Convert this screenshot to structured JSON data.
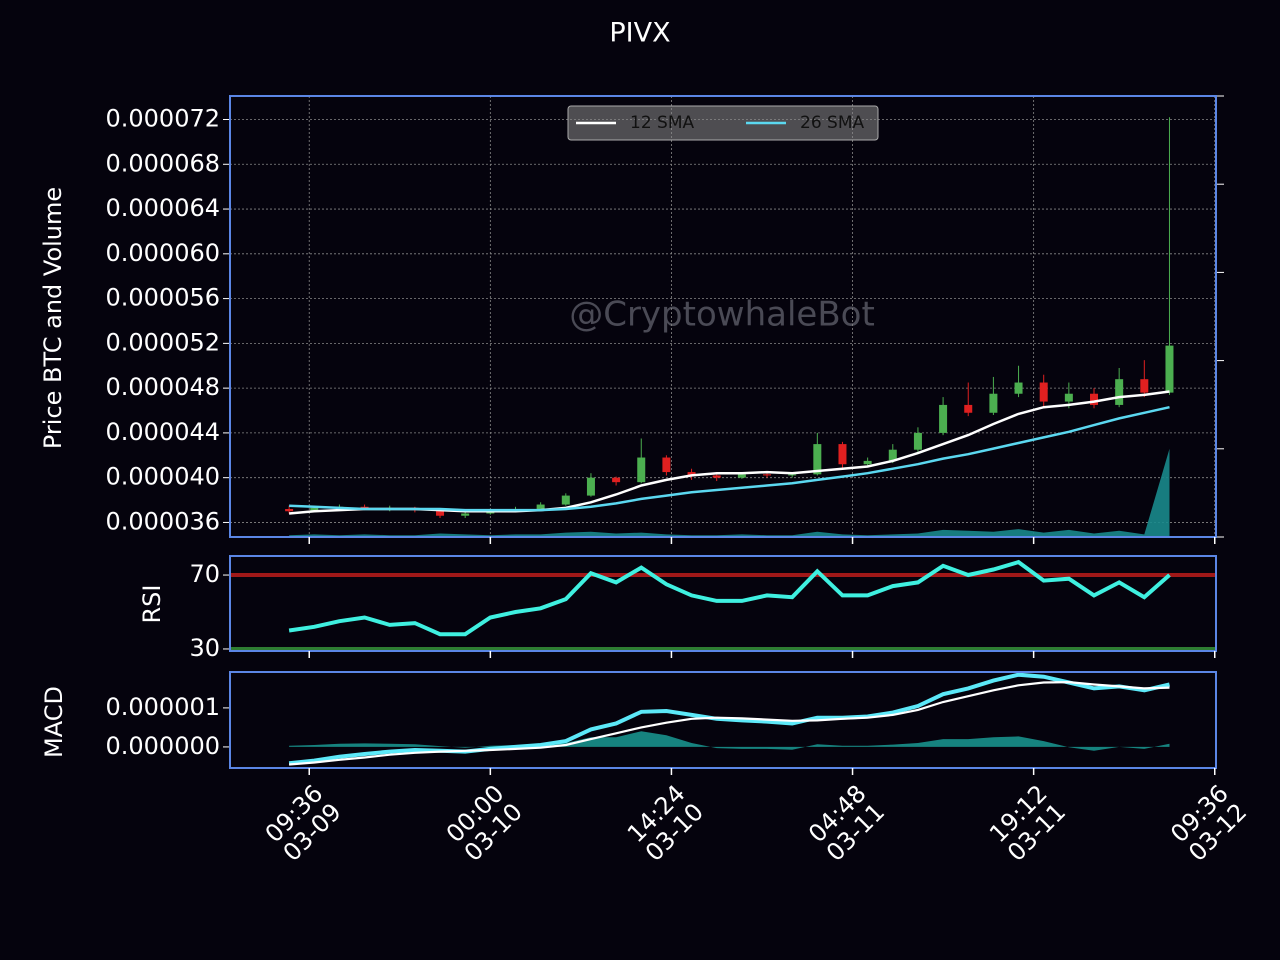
{
  "chart_data": [
    {
      "type": "candlestick",
      "title": "PIVX",
      "ylabel": "Price BTC and Volume",
      "watermark": "@CryptowhaleBot",
      "x": [
        8,
        10,
        12,
        14,
        16,
        18,
        20,
        22,
        24,
        26,
        28,
        30,
        32,
        34,
        36,
        38,
        40,
        42,
        44,
        46,
        48,
        50,
        52,
        54,
        56,
        58,
        60,
        62,
        64,
        66,
        68,
        70,
        72,
        74,
        76,
        78
      ],
      "xlim": [
        3.3,
        81.7
      ],
      "xticks": [
        {
          "value": 9.6,
          "label": "09:36\n03-09"
        },
        {
          "value": 24,
          "label": "00:00\n03-10"
        },
        {
          "value": 38.4,
          "label": "14:24\n03-10"
        },
        {
          "value": 52.8,
          "label": "04:48\n03-11"
        },
        {
          "value": 67.2,
          "label": "19:12\n03-11"
        },
        {
          "value": 81.6,
          "label": "09:36\n03-12"
        }
      ],
      "ylim": [
        3.47e-05,
        7.41e-05
      ],
      "yticks": [
        {
          "value": 3.6e-05,
          "label": "0.000036"
        },
        {
          "value": 4e-05,
          "label": "0.000040"
        },
        {
          "value": 4.4e-05,
          "label": "0.000044"
        },
        {
          "value": 4.8e-05,
          "label": "0.000048"
        },
        {
          "value": 5.2e-05,
          "label": "0.000052"
        },
        {
          "value": 5.6e-05,
          "label": "0.000056"
        },
        {
          "value": 6e-05,
          "label": "0.000060"
        },
        {
          "value": 6.4e-05,
          "label": "0.000064"
        },
        {
          "value": 6.8e-05,
          "label": "0.000068"
        },
        {
          "value": 7.2e-05,
          "label": "0.000072"
        }
      ],
      "grid": true,
      "up_color": "#4caf50",
      "down_color": "#e02020",
      "open": [
        3.72e-05,
        3.7e-05,
        3.73e-05,
        3.74e-05,
        3.72e-05,
        3.73e-05,
        3.71e-05,
        3.66e-05,
        3.68e-05,
        3.7e-05,
        3.72e-05,
        3.76e-05,
        3.84e-05,
        4e-05,
        3.96e-05,
        4.18e-05,
        4.05e-05,
        4.02e-05,
        4e-05,
        4.03e-05,
        4.02e-05,
        4.03e-05,
        4.3e-05,
        4.12e-05,
        4.15e-05,
        4.25e-05,
        4.4e-05,
        4.65e-05,
        4.58e-05,
        4.75e-05,
        4.85e-05,
        4.68e-05,
        4.75e-05,
        4.65e-05,
        4.88e-05,
        4.76e-05
      ],
      "high": [
        3.75e-05,
        3.74e-05,
        3.76e-05,
        3.76e-05,
        3.75e-05,
        3.74e-05,
        3.72e-05,
        3.7e-05,
        3.72e-05,
        3.74e-05,
        3.78e-05,
        3.86e-05,
        4.04e-05,
        4.01e-05,
        4.35e-05,
        4.2e-05,
        4.08e-05,
        4.04e-05,
        4.05e-05,
        4.06e-05,
        4.05e-05,
        4.4e-05,
        4.32e-05,
        4.18e-05,
        4.3e-05,
        4.45e-05,
        4.72e-05,
        4.85e-05,
        4.9e-05,
        5e-05,
        4.92e-05,
        4.85e-05,
        4.8e-05,
        4.98e-05,
        5.05e-05,
        7.22e-05
      ],
      "low": [
        3.68e-05,
        3.69e-05,
        3.71e-05,
        3.71e-05,
        3.7e-05,
        3.69e-05,
        3.64e-05,
        3.64e-05,
        3.67e-05,
        3.69e-05,
        3.71e-05,
        3.75e-05,
        3.83e-05,
        3.93e-05,
        3.95e-05,
        4.02e-05,
        3.98e-05,
        3.97e-05,
        3.99e-05,
        4e-05,
        4e-05,
        4.02e-05,
        4.08e-05,
        4.1e-05,
        4.13e-05,
        4.23e-05,
        4.38e-05,
        4.55e-05,
        4.56e-05,
        4.72e-05,
        4.62e-05,
        4.62e-05,
        4.62e-05,
        4.63e-05,
        4.72e-05,
        4.74e-05
      ],
      "close": [
        3.7e-05,
        3.73e-05,
        3.74e-05,
        3.72e-05,
        3.73e-05,
        3.71e-05,
        3.66e-05,
        3.68e-05,
        3.7e-05,
        3.72e-05,
        3.76e-05,
        3.84e-05,
        4e-05,
        3.96e-05,
        4.18e-05,
        4.05e-05,
        4.02e-05,
        4e-05,
        4.03e-05,
        4.02e-05,
        4.03e-05,
        4.3e-05,
        4.12e-05,
        4.15e-05,
        4.25e-05,
        4.4e-05,
        4.65e-05,
        4.58e-05,
        4.75e-05,
        4.85e-05,
        4.68e-05,
        4.75e-05,
        4.65e-05,
        4.88e-05,
        4.76e-05,
        5.18e-05
      ],
      "series": [
        {
          "name": "12 SMA",
          "color": "#ffffff",
          "values": [
            3.68e-05,
            3.7e-05,
            3.71e-05,
            3.72e-05,
            3.72e-05,
            3.72e-05,
            3.71e-05,
            3.7e-05,
            3.7e-05,
            3.7e-05,
            3.71e-05,
            3.73e-05,
            3.78e-05,
            3.85e-05,
            3.93e-05,
            3.98e-05,
            4.02e-05,
            4.04e-05,
            4.04e-05,
            4.05e-05,
            4.04e-05,
            4.06e-05,
            4.08e-05,
            4.1e-05,
            4.15e-05,
            4.22e-05,
            4.3e-05,
            4.38e-05,
            4.48e-05,
            4.57e-05,
            4.63e-05,
            4.65e-05,
            4.68e-05,
            4.72e-05,
            4.74e-05,
            4.77e-05
          ]
        },
        {
          "name": "26 SMA",
          "color": "#5bd8f0",
          "values": [
            3.75e-05,
            3.74e-05,
            3.73e-05,
            3.72e-05,
            3.72e-05,
            3.72e-05,
            3.72e-05,
            3.71e-05,
            3.71e-05,
            3.71e-05,
            3.71e-05,
            3.72e-05,
            3.74e-05,
            3.77e-05,
            3.81e-05,
            3.84e-05,
            3.87e-05,
            3.89e-05,
            3.91e-05,
            3.93e-05,
            3.95e-05,
            3.98e-05,
            4.01e-05,
            4.04e-05,
            4.08e-05,
            4.12e-05,
            4.17e-05,
            4.21e-05,
            4.26e-05,
            4.31e-05,
            4.36e-05,
            4.41e-05,
            4.47e-05,
            4.53e-05,
            4.58e-05,
            4.63e-05
          ]
        }
      ],
      "volume": {
        "axis": "y2",
        "color": "#1a8a8c",
        "values": [
          0.02,
          0.03,
          0.02,
          0.03,
          0.02,
          0.02,
          0.04,
          0.03,
          0.02,
          0.03,
          0.03,
          0.05,
          0.06,
          0.04,
          0.05,
          0.03,
          0.02,
          0.02,
          0.03,
          0.02,
          0.02,
          0.06,
          0.03,
          0.02,
          0.03,
          0.04,
          0.08,
          0.07,
          0.06,
          0.09,
          0.05,
          0.08,
          0.04,
          0.07,
          0.03,
          1.0
        ]
      },
      "y2lim": [
        0,
        5
      ],
      "y2ticks": [
        0,
        1,
        2,
        3,
        4,
        5
      ]
    },
    {
      "type": "line",
      "ylabel": "RSI",
      "ylim": [
        28.9,
        80.3
      ],
      "yticks": [
        30,
        70
      ],
      "reference_lines": [
        {
          "value": 70,
          "color": "#a01818"
        },
        {
          "value": 30,
          "color": "#2e7d32"
        }
      ],
      "series": [
        {
          "color": "#3ff0e0",
          "values": [
            40,
            42,
            45,
            47,
            43,
            44,
            38,
            38,
            47,
            50,
            52,
            57,
            71,
            66,
            74,
            65,
            59,
            56,
            56,
            59,
            58,
            72,
            59,
            59,
            64,
            66,
            75,
            70,
            73,
            77,
            67,
            68,
            59,
            66,
            58,
            70
          ]
        }
      ]
    },
    {
      "type": "line",
      "ylabel": "MACD",
      "ylim": [
        -5.4e-07,
        1.92e-06
      ],
      "yticks": [
        {
          "value": 0,
          "label": "0.000000"
        },
        1e-06
      ],
      "series": [
        {
          "color": "#5ce8f8",
          "values": [
            -4.2e-07,
            -3.5e-07,
            -2.5e-07,
            -1.8e-07,
            -1.2e-07,
            -8e-08,
            -1e-07,
            -1.2e-07,
            -5e-08,
            0,
            5e-08,
            1.5e-07,
            4.5e-07,
            6e-07,
            9e-07,
            9.2e-07,
            8.2e-07,
            7.2e-07,
            6.8e-07,
            6.5e-07,
            6e-07,
            7.5e-07,
            7.5e-07,
            7.8e-07,
            8.8e-07,
            1.05e-06,
            1.35e-06,
            1.5e-06,
            1.7e-06,
            1.85e-06,
            1.8e-06,
            1.65e-06,
            1.5e-06,
            1.55e-06,
            1.45e-06,
            1.6e-06
          ]
        },
        {
          "color": "#ffffff",
          "values": [
            -4.5e-07,
            -4e-07,
            -3.3e-07,
            -2.7e-07,
            -2e-07,
            -1.5e-07,
            -1.2e-07,
            -1e-07,
            -8e-08,
            -5e-08,
            -2e-08,
            5e-08,
            2e-07,
            3.5e-07,
            5e-07,
            6.2e-07,
            7.2e-07,
            7.5e-07,
            7.3e-07,
            7e-07,
            6.7e-07,
            6.8e-07,
            7.2e-07,
            7.5e-07,
            8.2e-07,
            9.5e-07,
            1.15e-06,
            1.3e-06,
            1.45e-06,
            1.58e-06,
            1.65e-06,
            1.66e-06,
            1.6e-06,
            1.55e-06,
            1.5e-06,
            1.52e-06
          ]
        }
      ],
      "histogram": {
        "color": "#1a9a94",
        "values": [
          3e-08,
          5e-08,
          8e-08,
          9e-08,
          8e-08,
          7e-08,
          2e-08,
          -2e-08,
          3e-08,
          5e-08,
          7e-08,
          1e-07,
          2.5e-07,
          2.5e-07,
          4e-07,
          3e-07,
          1e-07,
          -3e-08,
          -5e-08,
          -5e-08,
          -7e-08,
          7e-08,
          3e-08,
          3e-08,
          6e-08,
          1e-07,
          2e-07,
          2e-07,
          2.5e-07,
          2.7e-07,
          1.5e-07,
          -1e-08,
          -1e-07,
          0,
          -5e-08,
          8e-08
        ]
      }
    }
  ]
}
